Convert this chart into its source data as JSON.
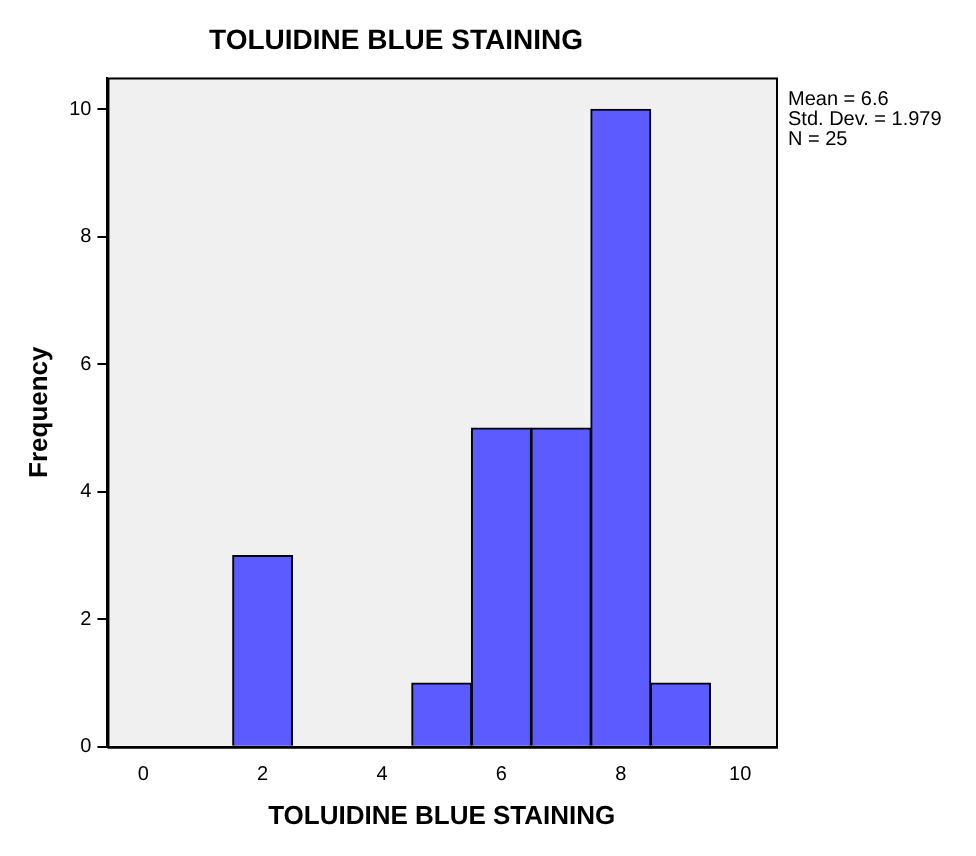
{
  "chart_data": {
    "type": "histogram",
    "title": "TOLUIDINE BLUE STAINING",
    "xlabel": "TOLUIDINE BLUE STAINING",
    "ylabel": "Frequency",
    "bins": [
      1.5,
      2.5,
      3.5,
      4.5,
      5.5,
      6.5,
      7.5,
      8.5,
      9.5
    ],
    "values": [
      3,
      0,
      0,
      1,
      5,
      5,
      10,
      1
    ],
    "color": "#5b5bff",
    "xlim": [
      -0.6,
      10.6
    ],
    "xticks": [
      0,
      2,
      4,
      6,
      8,
      10
    ],
    "ylim": [
      0,
      10.5
    ],
    "yticks": [
      0,
      2,
      4,
      6,
      8,
      10
    ],
    "grid": false,
    "legend": false,
    "annotations": [
      "Mean = 6.6",
      "Std. Dev. = 1.979",
      "N = 25"
    ]
  }
}
